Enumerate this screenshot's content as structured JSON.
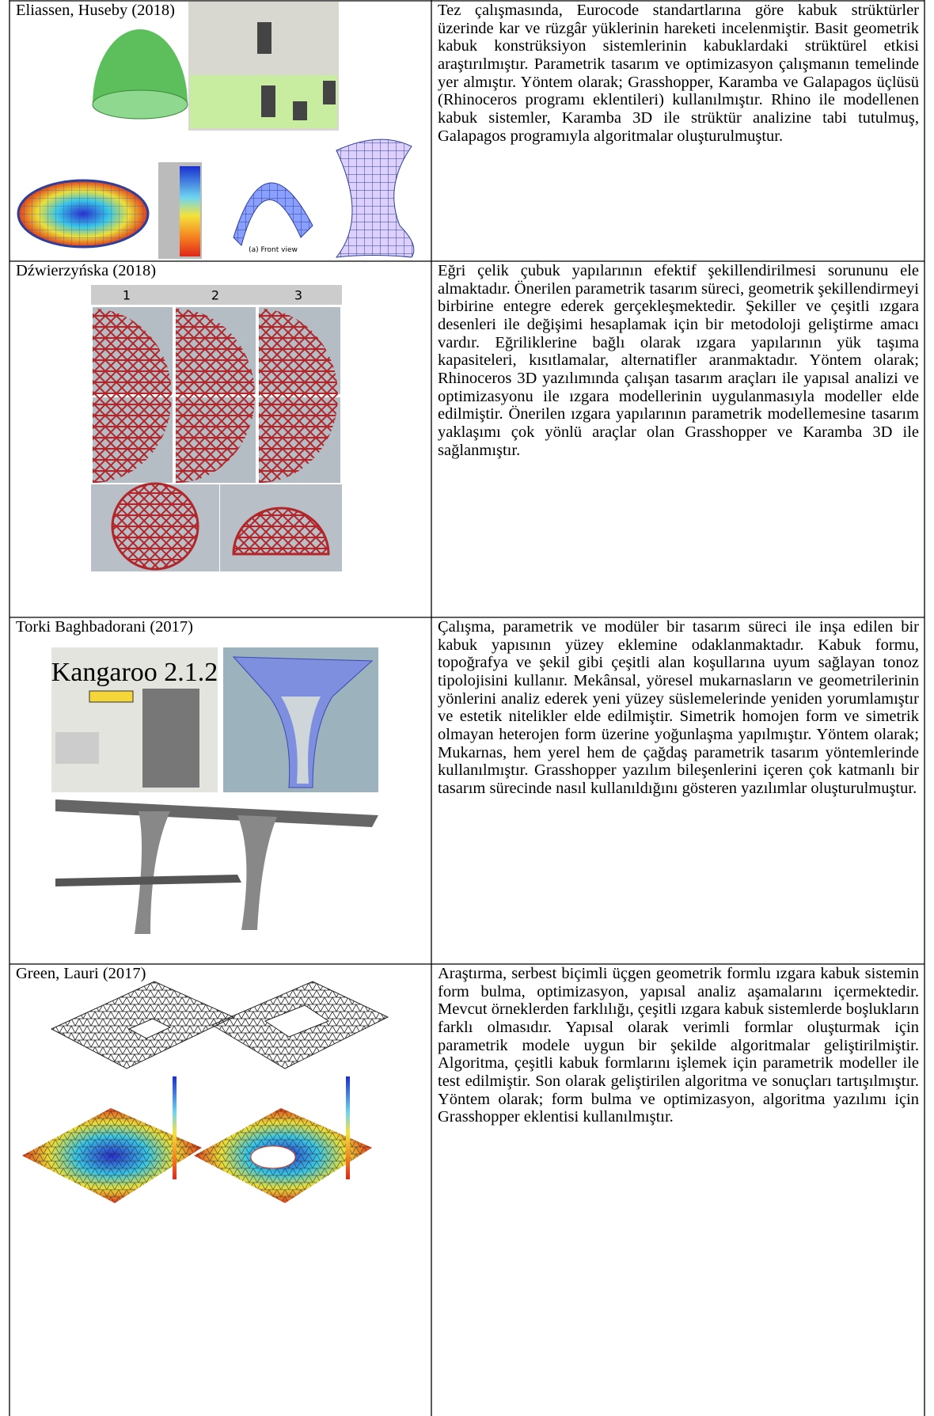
{
  "table": {
    "rows": [
      {
        "reference": "Eliassen, Huseby (2018)",
        "figure_labels": [
          "(a) Front view"
        ],
        "description": "Tez çalışmasında, Eurocode standartlarına göre kabuk strüktürler üzerinde kar ve rüzgâr yüklerinin hareketi incelenmiştir. Basit geometrik kabuk konstrüksiyon sistemlerinin kabuklardaki strüktürel etkisi araştırılmıştır. Parametrik tasarım ve optimizasyon çalışmanın temelinde yer almıştır. Yöntem olarak; Grasshopper, Karamba ve Galapagos üçlüsü (Rhinoceros programı eklentileri) kullanılmıştır. Rhino ile modellenen kabuk sistemler, Karamba 3D ile strüktür analizine tabi tutulmuş, Galapagos programıyla algoritmalar oluşturulmuştur."
      },
      {
        "reference": "Dźwierzyńska (2018)",
        "figure_labels": [
          "1",
          "2",
          "3"
        ],
        "description": "Eğri çelik çubuk yapılarının efektif şekillendirilmesi sorununu ele almaktadır. Önerilen parametrik tasarım süreci, geometrik şekillendirmeyi birbirine entegre ederek gerçekleşmektedir. Şekiller ve çeşitli ızgara desenleri ile değişimi hesaplamak için bir metodoloji geliştirme amacı vardır. Eğriliklerine bağlı olarak ızgara yapılarının yük taşıma kapasiteleri, kısıtlamalar, alternatifler aranmaktadır. Yöntem olarak; Rhinoceros 3D yazılımında çalışan tasarım araçları ile yapısal analizi ve optimizasyonu ile ızgara modellerinin uygulanmasıyla modeller elde edilmiştir. Önerilen ızgara yapılarının parametrik modellemesine tasarım yaklaşımı çok yönlü araçlar olan Grasshopper ve Karamba 3D ile sağlanmıştır."
      },
      {
        "reference": "Torki Baghbadorani (2017)",
        "figure_labels": [
          "Kangaroo 2.1.2"
        ],
        "description": "Çalışma, parametrik ve modüler bir tasarım süreci ile inşa edilen bir kabuk yapısının yüzey eklemine odaklanmaktadır. Kabuk formu, topoğrafya ve şekil gibi çeşitli alan koşullarına uyum sağlayan tonoz tipolojisini kullanır. Mekânsal, yöresel mukarnasların ve geometrilerinin yönlerini analiz ederek yeni yüzey süslemelerinde yeniden yorumlamıştır ve estetik nitelikler elde edilmiştir. Simetrik homojen form ve simetrik olmayan heterojen form üzerine yoğunlaşma yapılmıştır. Yöntem olarak; Mukarnas, hem yerel hem de çağdaş parametrik tasarım yöntemlerinde kullanılmıştır. Grasshopper yazılım bileşenlerini içeren çok katmanlı bir tasarım sürecinde nasıl kullanıldığını gösteren yazılımlar oluşturulmuştur."
      },
      {
        "reference": "Green, Lauri (2017)",
        "description": "Araştırma, serbest biçimli üçgen geometrik formlu ızgara kabuk sistemin form bulma, optimizasyon, yapısal analiz aşamalarını içermektedir. Mevcut örneklerden farklılığı, çeşitli ızgara kabuk sistemlerde boşlukların farklı olmasıdır. Yapısal olarak verimli formlar oluşturmak için parametrik modele uygun bir şekilde algoritmalar geliştirilmiştir. Algoritma, çeşitli kabuk formlarını işlemek için parametrik modeller ile test edilmiştir. Son olarak geliştirilen algoritma ve sonuçları tartışılmıştır. Yöntem olarak; form bulma ve optimizasyon, algoritma yazılımı için Grasshopper eklentisi kullanılmıştır."
      }
    ]
  }
}
